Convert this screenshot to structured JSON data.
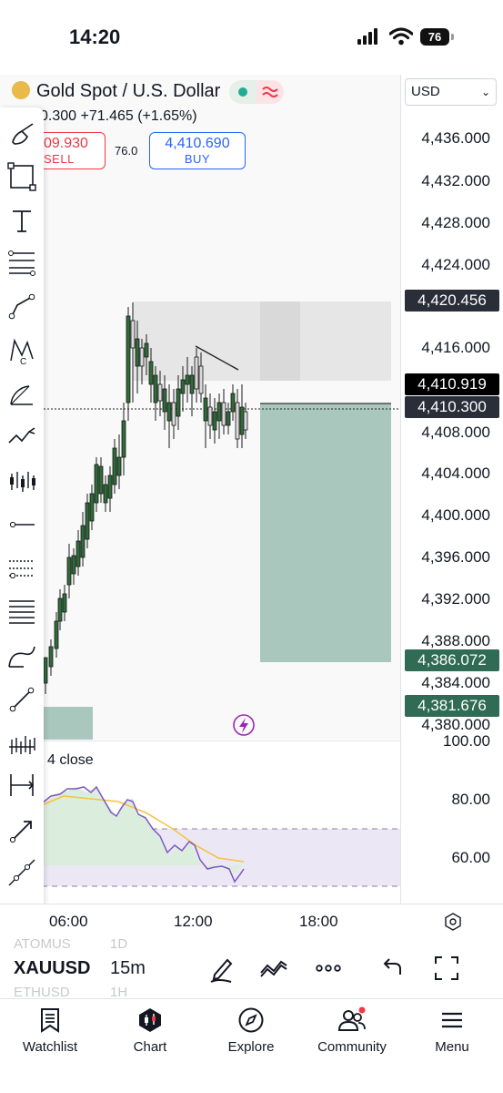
{
  "status_bar": {
    "time": "14:20",
    "battery": "76"
  },
  "symbol": {
    "title": "Gold Spot / U.S. Dollar",
    "ohlc": "0.300 +71.465 (+1.65%)",
    "sell_price": "09.930",
    "sell_label": "SELL",
    "spread": "76.0",
    "buy_price": "4,410.690",
    "buy_label": "BUY"
  },
  "price_scale": {
    "currency": "USD",
    "ticks": [
      "4,436.000",
      "4,432.000",
      "4,428.000",
      "4,424.000",
      "4,416.000",
      "4,408.000",
      "4,404.000",
      "4,400.000",
      "4,396.000",
      "4,392.000",
      "4,388.000",
      "4,384.000",
      "4,380.000"
    ],
    "badges": [
      {
        "label": "4,420.456",
        "color": "#2a2e39"
      },
      {
        "label": "4,410.919",
        "color": "#000000"
      },
      {
        "label": "4,410.300",
        "color": "#2a2e39"
      },
      {
        "label": "4,386.072",
        "color": "#2f6b55"
      },
      {
        "label": "4,381.676",
        "color": "#2f6b55"
      }
    ]
  },
  "rsi": {
    "label": "4 close",
    "ticks": [
      "100.00",
      "80.00",
      "60.00"
    ]
  },
  "time_axis": {
    "labels": [
      "06:00",
      "12:00",
      "18:00"
    ]
  },
  "symbol_bar": {
    "symbol": "XAUUSD",
    "interval": "15m",
    "ghost_above": [
      "ATOMUS",
      "1D"
    ],
    "ghost_below": [
      "ETHUSD",
      "1H"
    ]
  },
  "nav": [
    {
      "label": "Watchlist",
      "icon": "watchlist-icon"
    },
    {
      "label": "Chart",
      "icon": "chart-icon"
    },
    {
      "label": "Explore",
      "icon": "compass-icon"
    },
    {
      "label": "Community",
      "icon": "community-icon"
    },
    {
      "label": "Menu",
      "icon": "menu-icon"
    }
  ],
  "colors": {
    "up": "#2f6b3a",
    "down": "#1a1a1a",
    "accent": "#2962ff",
    "sell": "#f23645",
    "rsi_line": "#7e57c2",
    "rsi_ma": "#f5c342",
    "target_zone": "#a9c7bd"
  }
}
